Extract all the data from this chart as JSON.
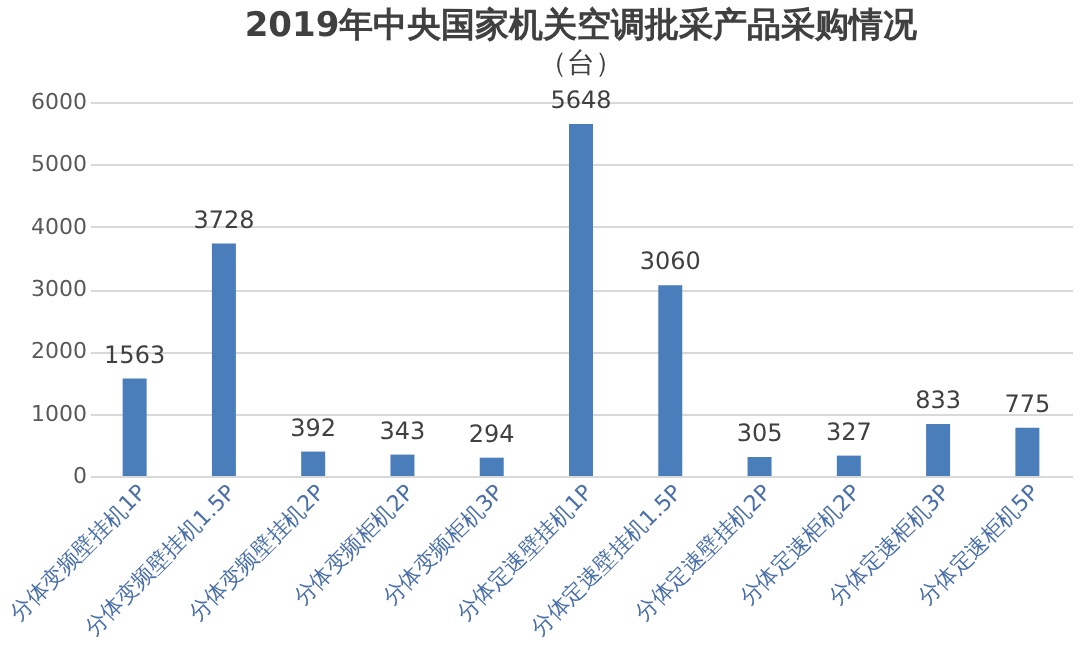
{
  "chart_data": {
    "type": "bar",
    "title": "2019年中央国家机关空调批采产品采购情况",
    "subtitle": "（台）",
    "categories": [
      "分体变频壁挂机1P",
      "分体变频壁挂机1.5P",
      "分体变频壁挂机2P",
      "分体变频柜机2P",
      "分体变频柜机3P",
      "分体定速壁挂机1P",
      "分体定速壁挂机1.5P",
      "分体定速壁挂机2P",
      "分体定速柜机2P",
      "分体定速柜机3P",
      "分体定速柜机5P"
    ],
    "values": [
      1563,
      3728,
      392,
      343,
      294,
      5648,
      3060,
      305,
      327,
      833,
      775
    ],
    "color": "#4a7ebb",
    "ylim": [
      0,
      6000
    ],
    "yticks": [
      0,
      1000,
      2000,
      3000,
      4000,
      5000,
      6000
    ],
    "grid": "y",
    "data_labels": true
  }
}
